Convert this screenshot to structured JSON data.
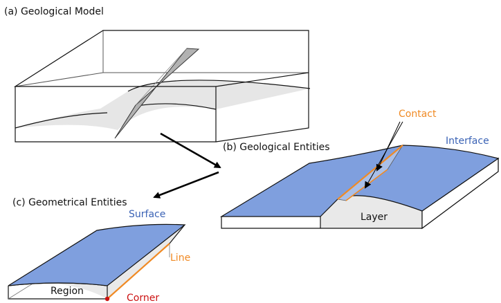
{
  "panels": {
    "a": {
      "title": "(a) Geological Model"
    },
    "b": {
      "title": "(b) Geological Entities",
      "labels": {
        "contact": "Contact",
        "interface": "Interface",
        "layer": "Layer"
      }
    },
    "c": {
      "title": "(c) Geometrical Entities",
      "labels": {
        "surface": "Surface",
        "line": "Line",
        "region": "Region",
        "corner": "Corner"
      }
    }
  },
  "colors": {
    "interface_blue": "#7f9fde",
    "contact_orange": "#f08a24",
    "corner_red": "#cc1111",
    "surface_label_blue": "#3a62b5",
    "fault_gray": "#a8a8a8",
    "layer_gray": "#e6e6e6"
  }
}
